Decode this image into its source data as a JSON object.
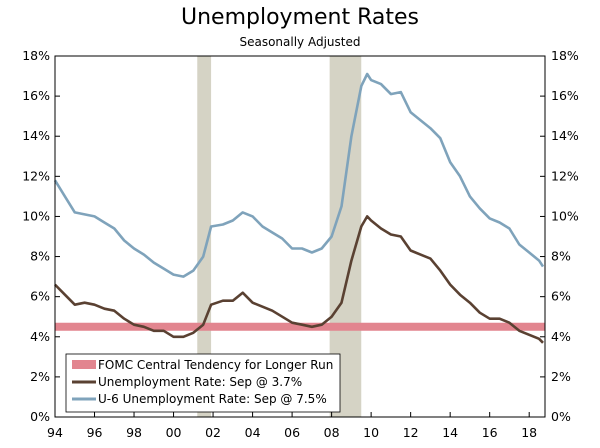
{
  "chart_data": {
    "type": "line",
    "title": "Unemployment Rates",
    "subtitle": "Seasonally Adjusted",
    "ylim": [
      0,
      18
    ],
    "y_ticks": [
      "0%",
      "2%",
      "4%",
      "6%",
      "8%",
      "10%",
      "12%",
      "14%",
      "16%",
      "18%"
    ],
    "y_tick_values": [
      0,
      2,
      4,
      6,
      8,
      10,
      12,
      14,
      16,
      18
    ],
    "xlim": [
      1994,
      2018.8
    ],
    "x_ticks": [
      "94",
      "96",
      "98",
      "00",
      "02",
      "04",
      "06",
      "08",
      "10",
      "12",
      "14",
      "16",
      "18"
    ],
    "x_tick_values": [
      1994,
      1996,
      1998,
      2000,
      2002,
      2004,
      2006,
      2008,
      2010,
      2012,
      2014,
      2016,
      2018
    ],
    "recessions": [
      {
        "start": 2001.2,
        "end": 2001.9
      },
      {
        "start": 2007.9,
        "end": 2009.5
      }
    ],
    "band": {
      "name": "FOMC Central Tendency for Longer Run",
      "low": 4.3,
      "high": 4.7,
      "color": "#e2858f"
    },
    "series": [
      {
        "name": "Unemployment Rate: Sep @ 3.7%",
        "color": "#5a4132",
        "points": [
          [
            1994.0,
            6.6
          ],
          [
            1994.5,
            6.1
          ],
          [
            1995.0,
            5.6
          ],
          [
            1995.5,
            5.7
          ],
          [
            1996.0,
            5.6
          ],
          [
            1996.5,
            5.4
          ],
          [
            1997.0,
            5.3
          ],
          [
            1997.5,
            4.9
          ],
          [
            1998.0,
            4.6
          ],
          [
            1998.5,
            4.5
          ],
          [
            1999.0,
            4.3
          ],
          [
            1999.5,
            4.3
          ],
          [
            2000.0,
            4.0
          ],
          [
            2000.5,
            4.0
          ],
          [
            2001.0,
            4.2
          ],
          [
            2001.5,
            4.6
          ],
          [
            2001.9,
            5.6
          ],
          [
            2002.5,
            5.8
          ],
          [
            2003.0,
            5.8
          ],
          [
            2003.5,
            6.2
          ],
          [
            2004.0,
            5.7
          ],
          [
            2004.5,
            5.5
          ],
          [
            2005.0,
            5.3
          ],
          [
            2005.5,
            5.0
          ],
          [
            2006.0,
            4.7
          ],
          [
            2006.5,
            4.6
          ],
          [
            2007.0,
            4.5
          ],
          [
            2007.5,
            4.6
          ],
          [
            2008.0,
            5.0
          ],
          [
            2008.5,
            5.7
          ],
          [
            2009.0,
            7.8
          ],
          [
            2009.5,
            9.5
          ],
          [
            2009.8,
            10.0
          ],
          [
            2010.0,
            9.8
          ],
          [
            2010.5,
            9.4
          ],
          [
            2011.0,
            9.1
          ],
          [
            2011.5,
            9.0
          ],
          [
            2012.0,
            8.3
          ],
          [
            2012.5,
            8.1
          ],
          [
            2013.0,
            7.9
          ],
          [
            2013.5,
            7.3
          ],
          [
            2014.0,
            6.6
          ],
          [
            2014.5,
            6.1
          ],
          [
            2015.0,
            5.7
          ],
          [
            2015.5,
            5.2
          ],
          [
            2016.0,
            4.9
          ],
          [
            2016.5,
            4.9
          ],
          [
            2017.0,
            4.7
          ],
          [
            2017.5,
            4.3
          ],
          [
            2018.0,
            4.1
          ],
          [
            2018.5,
            3.9
          ],
          [
            2018.7,
            3.7
          ]
        ]
      },
      {
        "name": "U-6 Unemployment Rate: Sep @ 7.5%",
        "color": "#7fa3bb",
        "points": [
          [
            1994.0,
            11.8
          ],
          [
            1994.5,
            11.0
          ],
          [
            1995.0,
            10.2
          ],
          [
            1995.5,
            10.1
          ],
          [
            1996.0,
            10.0
          ],
          [
            1996.5,
            9.7
          ],
          [
            1997.0,
            9.4
          ],
          [
            1997.5,
            8.8
          ],
          [
            1998.0,
            8.4
          ],
          [
            1998.5,
            8.1
          ],
          [
            1999.0,
            7.7
          ],
          [
            1999.5,
            7.4
          ],
          [
            2000.0,
            7.1
          ],
          [
            2000.5,
            7.0
          ],
          [
            2001.0,
            7.3
          ],
          [
            2001.5,
            8.0
          ],
          [
            2001.9,
            9.5
          ],
          [
            2002.5,
            9.6
          ],
          [
            2003.0,
            9.8
          ],
          [
            2003.5,
            10.2
          ],
          [
            2004.0,
            10.0
          ],
          [
            2004.5,
            9.5
          ],
          [
            2005.0,
            9.2
          ],
          [
            2005.5,
            8.9
          ],
          [
            2006.0,
            8.4
          ],
          [
            2006.5,
            8.4
          ],
          [
            2007.0,
            8.2
          ],
          [
            2007.5,
            8.4
          ],
          [
            2008.0,
            9.0
          ],
          [
            2008.5,
            10.5
          ],
          [
            2009.0,
            14.0
          ],
          [
            2009.5,
            16.5
          ],
          [
            2009.8,
            17.1
          ],
          [
            2010.0,
            16.8
          ],
          [
            2010.5,
            16.6
          ],
          [
            2011.0,
            16.1
          ],
          [
            2011.5,
            16.2
          ],
          [
            2012.0,
            15.2
          ],
          [
            2012.5,
            14.8
          ],
          [
            2013.0,
            14.4
          ],
          [
            2013.5,
            13.9
          ],
          [
            2014.0,
            12.7
          ],
          [
            2014.5,
            12.0
          ],
          [
            2015.0,
            11.0
          ],
          [
            2015.5,
            10.4
          ],
          [
            2016.0,
            9.9
          ],
          [
            2016.5,
            9.7
          ],
          [
            2017.0,
            9.4
          ],
          [
            2017.5,
            8.6
          ],
          [
            2018.0,
            8.2
          ],
          [
            2018.5,
            7.8
          ],
          [
            2018.7,
            7.5
          ]
        ]
      }
    ]
  }
}
